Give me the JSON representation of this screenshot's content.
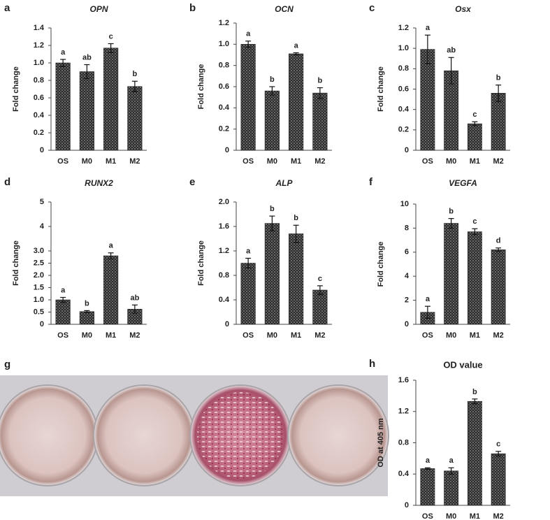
{
  "chart_data": [
    {
      "type": "bar",
      "panel": "a",
      "title": "OPN",
      "y_label": "Fold change",
      "categories": [
        "OS",
        "M0",
        "M1",
        "M2"
      ],
      "values": [
        1.0,
        0.9,
        1.17,
        0.73
      ],
      "errors": [
        0.04,
        0.08,
        0.05,
        0.06
      ],
      "significance": [
        "a",
        "ab",
        "c",
        "b"
      ],
      "ylim": [
        0,
        1.4
      ],
      "yticks": [
        0,
        0.2,
        0.4,
        0.6,
        0.8,
        {
          "value": 1,
          "label": "1.0"
        },
        1.2,
        1.4
      ]
    },
    {
      "type": "bar",
      "panel": "b",
      "title": "OCN",
      "y_label": "Fold change",
      "categories": [
        "OS",
        "M0",
        "M1",
        "M2"
      ],
      "values": [
        1.0,
        0.56,
        0.91,
        0.54
      ],
      "errors": [
        0.03,
        0.04,
        0.01,
        0.05
      ],
      "significance": [
        "a",
        "b",
        "a",
        "b"
      ],
      "ylim": [
        0,
        1.2
      ],
      "yticks": [
        0,
        0.2,
        0.4,
        0.6,
        0.8,
        {
          "value": 1,
          "label": "1.0"
        },
        1.2
      ]
    },
    {
      "type": "bar",
      "panel": "c",
      "title": "Osx",
      "y_label": "Fold change",
      "categories": [
        "OS",
        "M0",
        "M1",
        "M2"
      ],
      "values": [
        0.99,
        0.78,
        0.26,
        0.56
      ],
      "errors": [
        0.14,
        0.13,
        0.02,
        0.08
      ],
      "significance": [
        "a",
        "ab",
        "c",
        "b"
      ],
      "ylim": [
        0,
        1.2
      ],
      "yticks": [
        0,
        0.2,
        0.4,
        0.6,
        0.8,
        {
          "value": 1,
          "label": "1.0"
        },
        1.2
      ]
    },
    {
      "type": "bar",
      "panel": "d",
      "title": "RUNX2",
      "y_label": "Fold change",
      "categories": [
        "OS",
        "M0",
        "M1",
        "M2"
      ],
      "values": [
        1.0,
        0.52,
        2.8,
        0.62
      ],
      "errors": [
        0.1,
        0.04,
        0.12,
        0.17
      ],
      "significance": [
        "a",
        "b",
        "a",
        "ab"
      ],
      "ylim": [
        0,
        5
      ],
      "yticks": [
        0,
        0.5,
        {
          "value": 1,
          "label": "1.0"
        },
        1.5,
        {
          "value": 2,
          "label": "2.0"
        },
        2.5,
        {
          "value": 3,
          "label": "3.0"
        },
        4,
        5
      ]
    },
    {
      "type": "bar",
      "panel": "e",
      "title": "ALP",
      "y_label": "Fold change",
      "categories": [
        "OS",
        "M0",
        "M1",
        "M2"
      ],
      "values": [
        1.0,
        1.65,
        1.48,
        0.56
      ],
      "errors": [
        0.08,
        0.12,
        0.14,
        0.07
      ],
      "significance": [
        "a",
        "b",
        "b",
        "c"
      ],
      "ylim": [
        0,
        2
      ],
      "yticks": [
        0,
        0.4,
        0.8,
        1.2,
        1.6,
        {
          "value": 2,
          "label": "2.0"
        }
      ]
    },
    {
      "type": "bar",
      "panel": "f",
      "title": "VEGFA",
      "y_label": "Fold change",
      "categories": [
        "OS",
        "M0",
        "M1",
        "M2"
      ],
      "values": [
        1.0,
        8.4,
        7.7,
        6.2
      ],
      "errors": [
        0.5,
        0.4,
        0.25,
        0.15
      ],
      "significance": [
        "a",
        "b",
        "c",
        "d"
      ],
      "ylim": [
        0,
        10
      ],
      "yticks": [
        0,
        2,
        4,
        6,
        8,
        10
      ]
    },
    {
      "type": "bar",
      "panel": "h",
      "title": "OD value",
      "y_label": "OD at 405 nm",
      "categories": [
        "OS",
        "M0",
        "M1",
        "M2"
      ],
      "values": [
        0.47,
        0.44,
        1.33,
        0.66
      ],
      "errors": [
        0.01,
        0.04,
        0.03,
        0.03
      ],
      "significance": [
        "a",
        "a",
        "b",
        "c"
      ],
      "ylim": [
        0,
        1.6
      ],
      "yticks": [
        0,
        0.4,
        0.8,
        1.2,
        1.6
      ]
    }
  ],
  "image_panel": {
    "panel": "g"
  }
}
